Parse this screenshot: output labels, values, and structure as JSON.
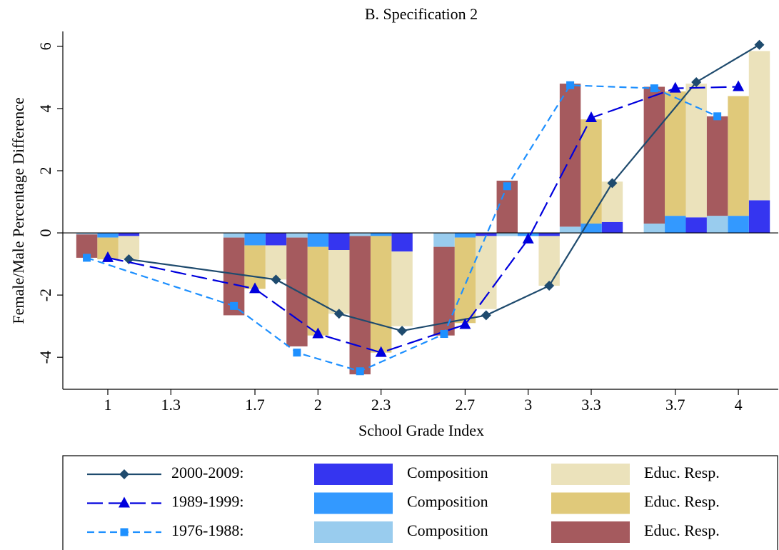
{
  "chart_data": {
    "type": "bar-line",
    "title": "B. Specification 2",
    "ylabel": "Female/Male Percentage Difference",
    "xlabel": "School Grade Index",
    "xlim": [
      0.786,
      4.19
    ],
    "xticks": [
      1,
      1.3,
      1.7,
      2,
      2.3,
      2.7,
      3,
      3.3,
      3.7,
      4
    ],
    "ylim": [
      -5.03,
      6.48
    ],
    "yticks": [
      -4,
      -2,
      0,
      2,
      4,
      6
    ],
    "series": [
      {
        "name": "2000-2009:",
        "color": "#1f4b6e",
        "marker": "diamond",
        "dash": "solid",
        "x": [
          1.1,
          1.8,
          2.1,
          2.4,
          2.8,
          3.1,
          3.4,
          3.8,
          4.1
        ],
        "values": [
          -0.85,
          -1.5,
          -2.6,
          -3.15,
          -2.65,
          -1.7,
          1.6,
          4.85,
          6.05
        ],
        "bars": [
          {
            "name": "Composition",
            "color": "#3535f0",
            "values": [
              -0.1,
              -0.4,
              -0.55,
              -0.6,
              -0.1,
              -0.1,
              0.35,
              0.5,
              1.05
            ]
          },
          {
            "name": "Educ. Resp.",
            "color": "#ebe2bb",
            "values": [
              -0.75,
              -1.1,
              -2.05,
              -2.4,
              -2.35,
              -1.6,
              1.3,
              4.3,
              4.8
            ]
          }
        ]
      },
      {
        "name": "1989-1999:",
        "color": "#0000dd",
        "marker": "triangle",
        "dash": "long",
        "x": [
          1,
          1.7,
          2,
          2.3,
          2.7,
          3,
          3.3,
          3.7,
          4
        ],
        "values": [
          -0.8,
          -1.8,
          -3.25,
          -3.85,
          -2.95,
          -0.2,
          3.7,
          4.65,
          4.7
        ],
        "bars": [
          {
            "name": "Composition",
            "color": "#3399ff",
            "values": [
              -0.15,
              -0.4,
              -0.45,
              -0.1,
              -0.15,
              -0.1,
              0.3,
              0.55,
              0.55
            ]
          },
          {
            "name": "Educ. Resp.",
            "color": "#e0c97a",
            "values": [
              -0.7,
              -1.4,
              -2.85,
              -3.75,
              -2.75,
              0,
              3.35,
              4.0,
              3.85
            ]
          }
        ]
      },
      {
        "name": "1976-1988:",
        "color": "#1e90ff",
        "marker": "square",
        "dash": "short",
        "x": [
          0.9,
          1.6,
          1.9,
          2.2,
          2.6,
          2.9,
          3.2,
          3.6,
          3.9
        ],
        "values": [
          -0.8,
          -2.35,
          -3.85,
          -4.45,
          -3.25,
          1.5,
          4.75,
          4.65,
          3.75
        ],
        "bars": [
          {
            "name": "Composition",
            "color": "#99ccee",
            "values": [
              -0.05,
              -0.15,
              -0.15,
              -0.1,
              -0.45,
              -0.1,
              0.2,
              0.3,
              0.55
            ]
          },
          {
            "name": "Educ. Resp.",
            "color": "#a55a5e",
            "values": [
              -0.75,
              -2.5,
              -3.5,
              -4.45,
              -2.85,
              1.68,
              4.6,
              4.4,
              3.2
            ]
          }
        ]
      }
    ]
  }
}
